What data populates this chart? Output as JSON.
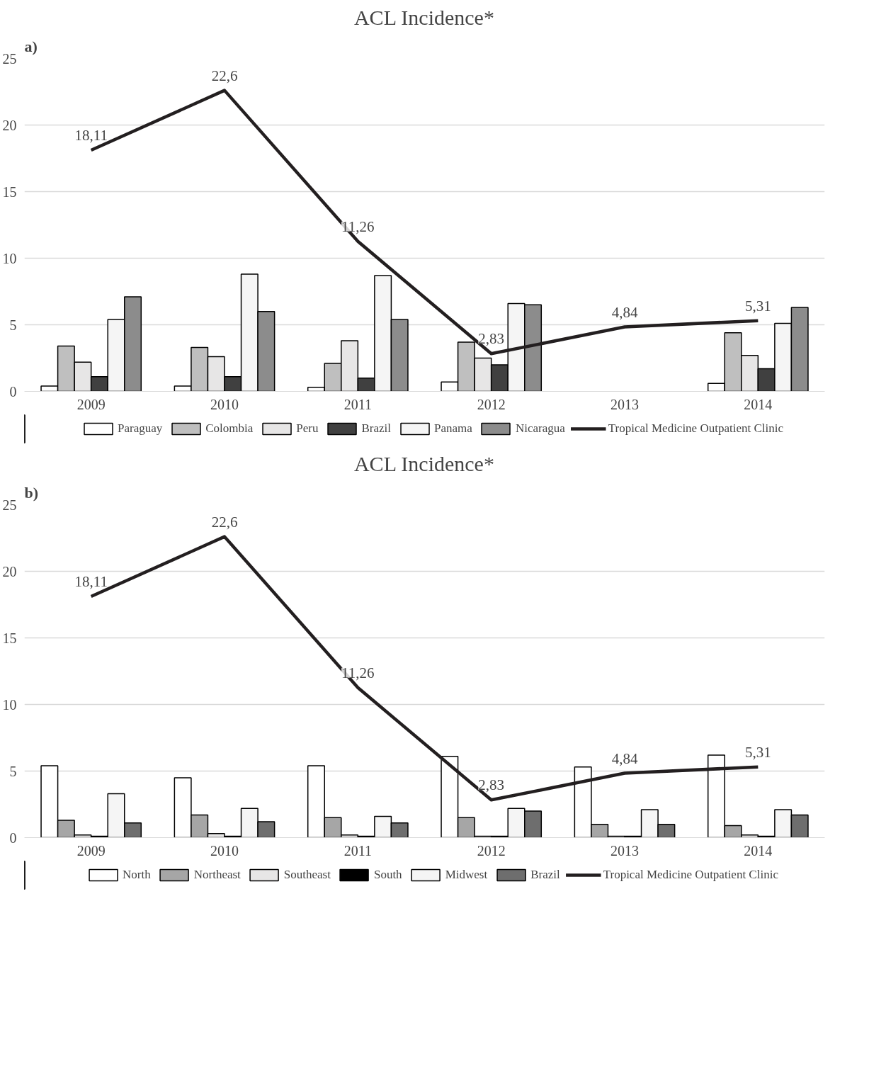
{
  "chart_data": [
    {
      "type": "bar",
      "title": "ACL Incidence*",
      "annotations": [
        "a)"
      ],
      "categories": [
        "2009",
        "2010",
        "2011",
        "2012",
        "2013",
        "2014"
      ],
      "ylim": [
        0,
        25
      ],
      "yticks": [
        0,
        5,
        10,
        15,
        20,
        25
      ],
      "grid": "y",
      "legend": "bottom",
      "series": [
        {
          "name": "Paraguay",
          "color": "#ffffff",
          "values": [
            0.4,
            0.4,
            0.3,
            0.7,
            null,
            0.6
          ]
        },
        {
          "name": "Colombia",
          "color": "#bfbfbf",
          "values": [
            3.4,
            3.3,
            2.1,
            3.7,
            null,
            4.4
          ]
        },
        {
          "name": "Peru",
          "color": "#e7e6e6",
          "values": [
            2.2,
            2.6,
            3.8,
            2.5,
            null,
            2.7
          ]
        },
        {
          "name": "Brazil",
          "color": "#404040",
          "values": [
            1.1,
            1.1,
            1.0,
            2.0,
            null,
            1.7
          ]
        },
        {
          "name": "Panama",
          "color": "#f5f5f5",
          "values": [
            5.4,
            8.8,
            8.7,
            6.6,
            null,
            5.1
          ]
        },
        {
          "name": "Nicaragua",
          "color": "#8c8c8c",
          "values": [
            7.1,
            6.0,
            5.4,
            6.5,
            null,
            6.3
          ]
        },
        {
          "name": "Tropical Medicine Outpatient Clinic",
          "type": "line",
          "color": "#231f20",
          "values": [
            18.11,
            22.6,
            11.26,
            2.83,
            4.84,
            5.31
          ],
          "value_labels": [
            "18,11",
            "22,6",
            "11,26",
            "2,83",
            "4,84",
            "5,31"
          ]
        }
      ]
    },
    {
      "type": "bar",
      "title": "ACL Incidence*",
      "annotations": [
        "b)"
      ],
      "categories": [
        "2009",
        "2010",
        "2011",
        "2012",
        "2013",
        "2014"
      ],
      "ylim": [
        0,
        25
      ],
      "yticks": [
        0,
        5,
        10,
        15,
        20,
        25
      ],
      "grid": "y",
      "legend": "bottom",
      "series": [
        {
          "name": "North",
          "color": "#ffffff",
          "values": [
            5.4,
            4.5,
            5.4,
            6.1,
            5.3,
            6.2
          ]
        },
        {
          "name": "Northeast",
          "color": "#a6a6a6",
          "values": [
            1.3,
            1.7,
            1.5,
            1.5,
            1.0,
            0.9
          ]
        },
        {
          "name": "Southeast",
          "color": "#e7e6e6",
          "values": [
            0.2,
            0.3,
            0.2,
            0.1,
            0.1,
            0.2
          ]
        },
        {
          "name": "South",
          "color": "#000000",
          "values": [
            0.1,
            0.1,
            0.1,
            0.1,
            0.1,
            0.1
          ]
        },
        {
          "name": "Midwest",
          "color": "#f5f5f5",
          "values": [
            3.3,
            2.2,
            1.6,
            2.2,
            2.1,
            2.1
          ]
        },
        {
          "name": "Brazil",
          "color": "#6e6e6e",
          "values": [
            1.1,
            1.2,
            1.1,
            2.0,
            1.0,
            1.7
          ]
        },
        {
          "name": "Tropical Medicine Outpatient Clinic",
          "type": "line",
          "color": "#231f20",
          "values": [
            18.11,
            22.6,
            11.26,
            2.83,
            4.84,
            5.31
          ],
          "value_labels": [
            "18,11",
            "22,6",
            "11,26",
            "2,83",
            "4,84",
            "5,31"
          ]
        }
      ]
    }
  ]
}
